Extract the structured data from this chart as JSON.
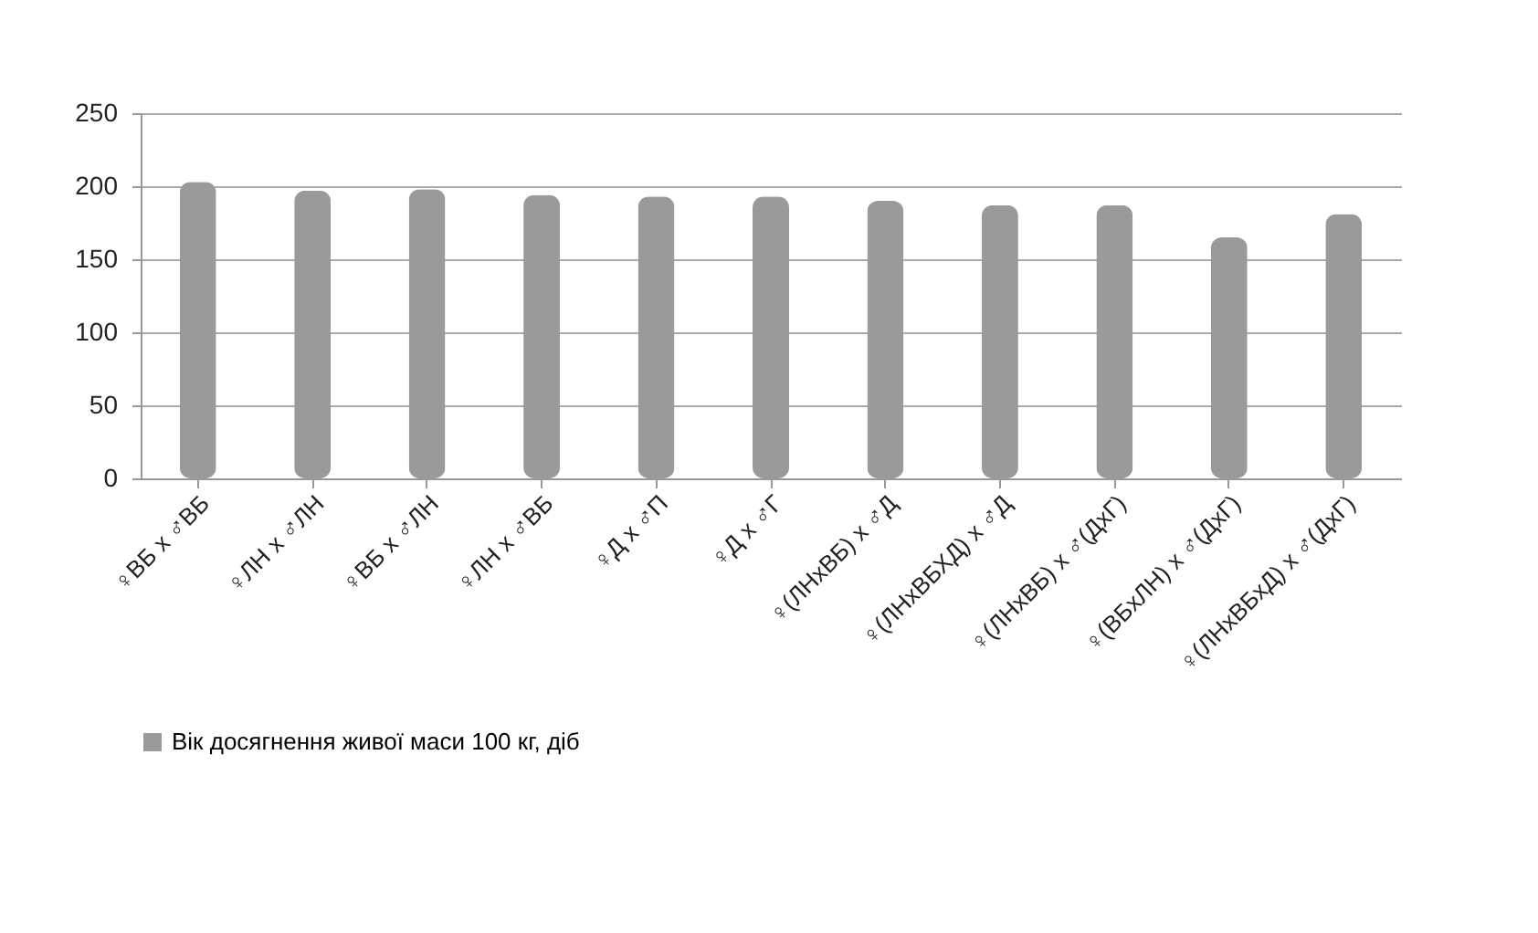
{
  "chart_data": {
    "type": "bar",
    "categories": [
      "♀ВБ х ♂ВБ",
      "♀ЛН х ♂ЛН",
      "♀ВБ х ♂ЛН",
      "♀ЛН х ♂ВБ",
      "♀Д х ♂П",
      "♀Д х ♂Г",
      "♀(ЛНхВБ) х ♂Д",
      "♀(ЛНхВБХД) х ♂Д",
      "♀(ЛНхВБ) х ♂(ДхГ)",
      "♀(ВБхЛН) х ♂(ДхГ)",
      "♀(ЛНхВБхД) х ♂(ДхГ)"
    ],
    "series": [
      {
        "name": "Вік досягнення живої маси 100 кг, діб",
        "color": "#9a9a9a",
        "values": [
          203,
          197,
          198,
          194,
          193,
          193,
          190,
          187,
          187,
          165,
          181
        ]
      }
    ],
    "ylim": [
      0,
      250
    ],
    "yticks": [
      0,
      50,
      100,
      150,
      200,
      250
    ],
    "grid": "y",
    "legend": "bottom"
  }
}
